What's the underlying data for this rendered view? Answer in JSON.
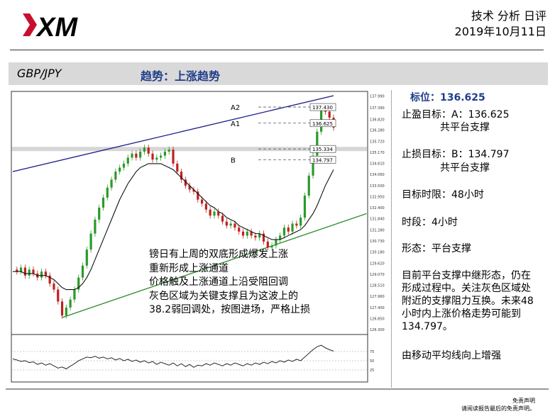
{
  "brand": {
    "logo_text": "XM"
  },
  "header": {
    "line1": "技术 分析 日评",
    "line2": "2019年10月11日"
  },
  "band": {
    "pair": "GBP/JPY",
    "trend": "趋势：上涨趋势"
  },
  "side": {
    "level": "标位：136.625",
    "tp_line1": "止盈目标：A：136.625",
    "tp_line2": "共平台支撑",
    "sl_line1": "止损目标：B：134.797",
    "sl_line2": "共平台支撑",
    "horizon": "目标时限：48小时",
    "period": "时段：4小时",
    "pattern": "形态：平台支撑",
    "comment_l1": "目前平台支撑中继形态，仍在",
    "comment_l2": "形成过程中。关注灰色区域处",
    "comment_l3": "附近的支撑阻力互换。未来48",
    "comment_l4": "小时内上涨价格走势可能到",
    "comment_l5": "134.797。",
    "ma_note": "由移动平均线向上增强"
  },
  "note": {
    "l1": "镑日有上周的双底形成爆发上涨",
    "l2": "重新形成上涨通道",
    "l3": "价格触及上涨通道上沿受阻回调",
    "l4": "灰色区域为关键支撑且为这波上的",
    "l5": "38.2弱回调处，按图进场，严格止损"
  },
  "disclaimer": {
    "l1": "免责声明",
    "l2": "请阅读报告最后的免责声明。"
  },
  "chart_data": {
    "type": "line",
    "title": "",
    "price_axis_ticks": [
      "137.990",
      "137.390",
      "136.820",
      "136.280",
      "135.720",
      "135.170",
      "134.610",
      "134.060",
      "133.500",
      "132.950",
      "132.400",
      "131.840",
      "131.280",
      "130.730",
      "130.180",
      "129.620",
      "129.070",
      "128.510",
      "127.960",
      "127.400",
      "126.850",
      "126.300"
    ],
    "ylim": [
      126.3,
      138.0
    ],
    "annotations": [
      {
        "label": "A2",
        "value": 137.43,
        "box": "137.430"
      },
      {
        "label": "A1",
        "value": 136.625,
        "box": "136.625"
      },
      {
        "label": "",
        "value": 135.334,
        "box": "135.334"
      },
      {
        "label": "B",
        "value": 134.797,
        "box": "134.797"
      }
    ],
    "close_series": [
      129.3,
      129.2,
      129.4,
      129.0,
      129.3,
      129.1,
      128.9,
      129.2,
      129.0,
      128.6,
      128.3,
      127.7,
      127.0,
      127.4,
      127.8,
      128.3,
      128.9,
      129.5,
      130.3,
      131.1,
      131.8,
      132.4,
      132.9,
      133.4,
      133.8,
      134.2,
      134.4,
      134.6,
      134.9,
      135.1,
      134.9,
      135.2,
      135.4,
      135.1,
      134.8,
      134.9,
      135.0,
      135.2,
      135.3,
      134.6,
      134.2,
      133.8,
      133.5,
      133.3,
      133.2,
      132.8,
      132.6,
      132.3,
      132.0,
      132.2,
      132.0,
      131.7,
      131.5,
      131.6,
      131.4,
      131.2,
      131.0,
      131.2,
      131.0,
      130.9,
      131.1,
      130.7,
      130.4,
      130.5,
      130.8,
      131.0,
      131.4,
      131.2,
      131.6,
      131.5,
      131.9,
      133.0,
      134.0,
      135.0,
      136.2,
      137.4,
      137.2,
      136.9,
      136.4
    ],
    "ma_series": [
      129.2,
      129.2,
      129.2,
      129.1,
      129.1,
      129.1,
      129.0,
      129.0,
      129.0,
      128.9,
      128.8,
      128.6,
      128.4,
      128.3,
      128.3,
      128.3,
      128.4,
      128.6,
      128.9,
      129.3,
      129.8,
      130.3,
      130.8,
      131.3,
      131.8,
      132.3,
      132.8,
      133.2,
      133.6,
      133.9,
      134.2,
      134.4,
      134.5,
      134.6,
      134.6,
      134.6,
      134.6,
      134.5,
      134.4,
      134.3,
      134.1,
      133.9,
      133.7,
      133.5,
      133.3,
      133.1,
      132.9,
      132.7,
      132.5,
      132.4,
      132.2,
      132.1,
      131.9,
      131.8,
      131.7,
      131.5,
      131.4,
      131.3,
      131.2,
      131.1,
      131.1,
      131.0,
      130.9,
      130.8,
      130.8,
      130.8,
      130.9,
      131.0,
      131.1,
      131.2,
      131.3,
      131.5,
      131.8,
      132.1,
      132.5,
      133.0,
      133.5,
      133.9,
      134.3
    ],
    "channel_upper": [
      [
        0,
        134.2
      ],
      [
        78,
        138.0
      ]
    ],
    "channel_lower": [
      [
        12,
        126.9
      ],
      [
        86,
        132.1
      ]
    ],
    "oscillator": {
      "levels": [
        "75",
        "50",
        "25"
      ],
      "ylim": [
        0,
        100
      ],
      "values": [
        55,
        52,
        48,
        50,
        45,
        47,
        40,
        44,
        38,
        42,
        36,
        30,
        33,
        28,
        35,
        42,
        50,
        55,
        60,
        58,
        62,
        57,
        60,
        55,
        58,
        52,
        56,
        50,
        54,
        48,
        52,
        46,
        50,
        44,
        48,
        40,
        46,
        42,
        38,
        44,
        36,
        42,
        34,
        40,
        32,
        38,
        36,
        42,
        38,
        44,
        40,
        36,
        42,
        38,
        44,
        40,
        36,
        42,
        38,
        44,
        40,
        46,
        42,
        48,
        44,
        50,
        46,
        52,
        48,
        54,
        50,
        60,
        70,
        80,
        88,
        92,
        85,
        80,
        76
      ]
    }
  }
}
